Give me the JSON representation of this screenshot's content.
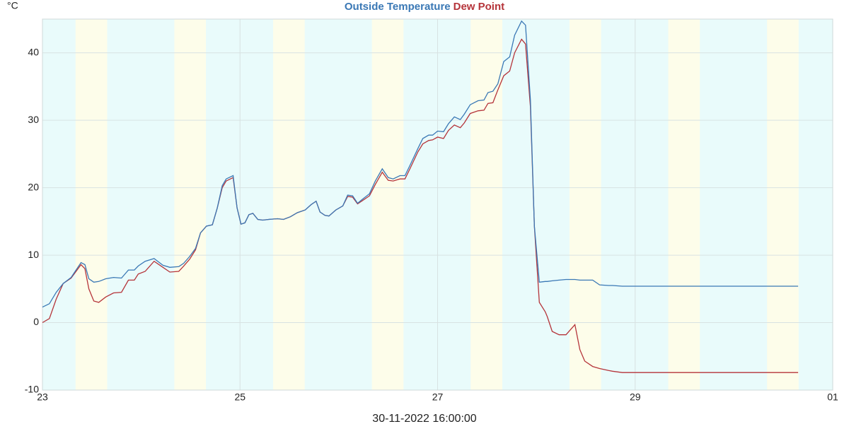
{
  "chart_data": {
    "type": "line",
    "y_unit": "°C",
    "x_label": "30-11-2022 16:00:00",
    "xlim": [
      23,
      31
    ],
    "xticks": [
      23,
      25,
      27,
      29,
      {
        "value": 31,
        "label": "01"
      }
    ],
    "ylim": [
      -10,
      45
    ],
    "yticks": [
      -10,
      0,
      10,
      20,
      30,
      40
    ],
    "grid": true,
    "x": [
      23.0,
      23.07,
      23.14,
      23.21,
      23.29,
      23.39,
      23.43,
      23.47,
      23.52,
      23.57,
      23.64,
      23.72,
      23.8,
      23.87,
      23.93,
      23.97,
      24.04,
      24.13,
      24.22,
      24.29,
      24.38,
      24.43,
      24.49,
      24.55,
      24.6,
      24.66,
      24.72,
      24.77,
      24.82,
      24.86,
      24.93,
      24.97,
      25.01,
      25.05,
      25.09,
      25.13,
      25.18,
      25.23,
      25.29,
      25.38,
      25.44,
      25.51,
      25.58,
      25.66,
      25.72,
      25.77,
      25.81,
      25.86,
      25.9,
      25.97,
      26.04,
      26.09,
      26.14,
      26.19,
      26.24,
      26.31,
      26.37,
      26.44,
      26.5,
      26.55,
      26.62,
      26.67,
      26.72,
      26.8,
      26.85,
      26.91,
      26.95,
      27.0,
      27.06,
      27.11,
      27.17,
      27.23,
      27.27,
      27.33,
      27.41,
      27.47,
      27.51,
      27.56,
      27.61,
      27.67,
      27.73,
      27.78,
      27.85,
      27.89,
      27.94,
      27.98,
      28.03,
      28.09,
      28.11,
      28.16,
      28.23,
      28.3,
      28.39,
      28.44,
      28.49,
      28.57,
      28.64,
      28.73,
      28.77,
      28.87,
      30.65
    ],
    "series": [
      {
        "name": "Outside Temperature",
        "color": "#3a78b5",
        "values": [
          2.3,
          2.8,
          4.5,
          5.8,
          6.7,
          8.9,
          8.6,
          6.5,
          6.0,
          6.1,
          6.5,
          6.7,
          6.6,
          7.8,
          7.8,
          8.4,
          9.1,
          9.5,
          8.5,
          8.2,
          8.3,
          8.8,
          9.8,
          11.0,
          13.3,
          14.3,
          14.5,
          17.0,
          20.3,
          21.3,
          21.8,
          17.0,
          14.6,
          14.8,
          16.0,
          16.2,
          15.3,
          15.2,
          15.3,
          15.4,
          15.3,
          15.7,
          16.3,
          16.7,
          17.5,
          18.0,
          16.4,
          15.9,
          15.8,
          16.7,
          17.3,
          18.9,
          18.8,
          17.7,
          18.3,
          19.1,
          21.0,
          22.8,
          21.5,
          21.3,
          21.8,
          21.8,
          23.3,
          25.8,
          27.3,
          27.8,
          27.8,
          28.4,
          28.3,
          29.5,
          30.5,
          30.1,
          30.9,
          32.3,
          32.9,
          33.0,
          34.1,
          34.3,
          35.4,
          38.7,
          39.4,
          42.6,
          44.7,
          44.1,
          33.0,
          14.3,
          6.0,
          6.1,
          6.1,
          6.2,
          6.3,
          6.4,
          6.4,
          6.3,
          6.3,
          6.3,
          5.6,
          5.5,
          5.5,
          5.4,
          5.4
        ]
      },
      {
        "name": "Dew Point",
        "color": "#b5343a",
        "values": [
          0,
          0.6,
          3.5,
          5.8,
          6.6,
          8.6,
          8.0,
          5.0,
          3.2,
          3.0,
          3.8,
          4.4,
          4.5,
          6.3,
          6.3,
          7.2,
          7.6,
          9.1,
          8.2,
          7.5,
          7.6,
          8.4,
          9.4,
          10.8,
          13.3,
          14.3,
          14.5,
          17.0,
          20.0,
          21.0,
          21.5,
          17.0,
          14.6,
          14.8,
          16.0,
          16.2,
          15.3,
          15.2,
          15.3,
          15.4,
          15.3,
          15.7,
          16.3,
          16.7,
          17.5,
          18.0,
          16.4,
          15.9,
          15.8,
          16.7,
          17.3,
          18.7,
          18.6,
          17.6,
          18.1,
          18.8,
          20.5,
          22.3,
          21.1,
          21.0,
          21.3,
          21.3,
          22.8,
          25.3,
          26.5,
          27.0,
          27.1,
          27.5,
          27.3,
          28.5,
          29.3,
          28.9,
          29.6,
          31.0,
          31.4,
          31.5,
          32.5,
          32.6,
          34.5,
          36.6,
          37.3,
          40.0,
          42.0,
          41.3,
          32.0,
          14.3,
          3.0,
          1.6,
          0.9,
          -1.3,
          -1.8,
          -1.8,
          -0.3,
          -4.0,
          -5.7,
          -6.5,
          -6.8,
          -7.1,
          -7.2,
          -7.4,
          -7.4
        ]
      }
    ]
  }
}
